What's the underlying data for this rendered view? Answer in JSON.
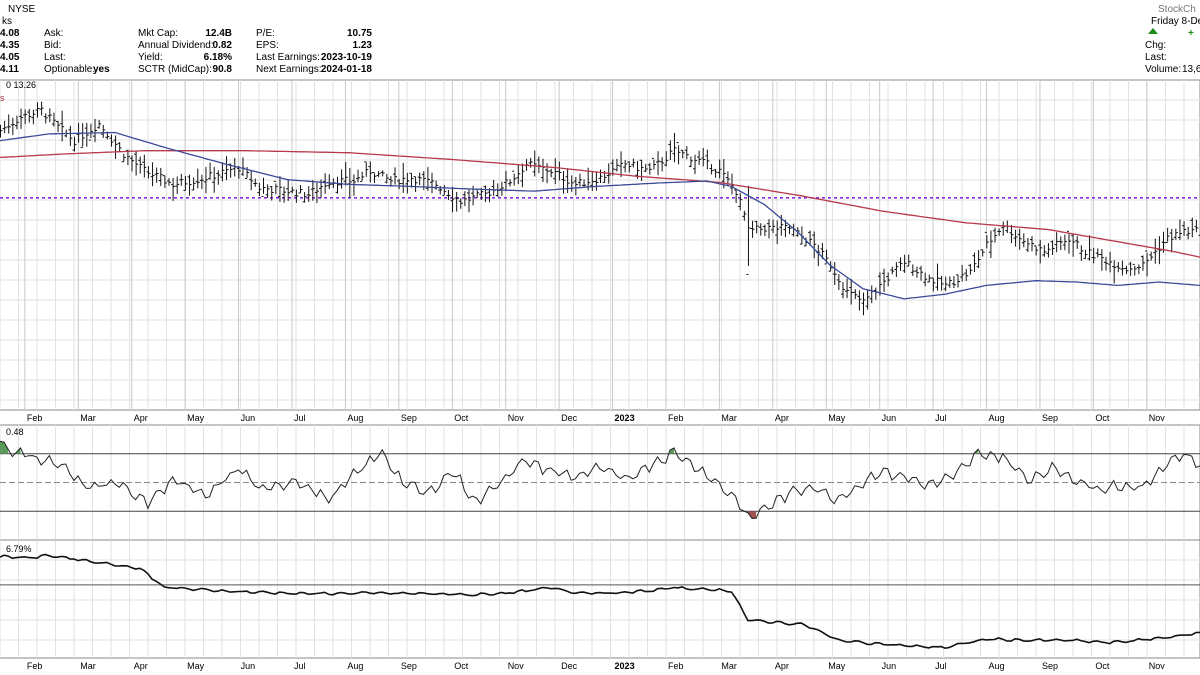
{
  "header": {
    "symbol_exchange": "NYSE",
    "watermark": "StockCh",
    "tick_prefix": "ks",
    "price_cells": [
      "4.08",
      "4.35",
      "4.05",
      "4.11"
    ],
    "col1": [
      {
        "label": "Ask:",
        "value": ""
      },
      {
        "label": "Bid:",
        "value": ""
      },
      {
        "label": "Last:",
        "value": ""
      },
      {
        "label": "Optionable:",
        "value": "yes"
      }
    ],
    "col2": [
      {
        "label": "Mkt Cap:",
        "value": "12.4B"
      },
      {
        "label": "Annual Dividend:",
        "value": "0.82"
      },
      {
        "label": "Yield:",
        "value": "6.18%"
      },
      {
        "label": "SCTR (MidCap):",
        "value": "90.8"
      }
    ],
    "col3": [
      {
        "label": "P/E:",
        "value": "10.75"
      },
      {
        "label": "EPS:",
        "value": "1.23"
      },
      {
        "label": "Last Earnings:",
        "value": "2023-10-19"
      },
      {
        "label": "Next Earnings:",
        "value": "2024-01-18"
      }
    ],
    "right": {
      "date": "Friday 8-De",
      "chg_label": "Chg:",
      "chg_value": "+",
      "last_label": "Last:",
      "volume_label": "Volume:",
      "volume_value": "13,6"
    }
  },
  "chart_data": {
    "type": "line",
    "x_tick_labels": [
      "Feb",
      "Mar",
      "Apr",
      "May",
      "Jun",
      "Jul",
      "Aug",
      "Sep",
      "Oct",
      "Nov",
      "Dec",
      "2023",
      "Feb",
      "Mar",
      "Apr",
      "May",
      "Jun",
      "Jul",
      "Aug",
      "Sep",
      "Oct",
      "Nov"
    ],
    "x_tick_index": [
      8,
      21,
      34,
      47,
      60,
      73,
      86,
      99,
      112,
      125,
      138,
      151,
      164,
      177,
      190,
      203,
      216,
      229,
      242,
      255,
      268,
      281
    ],
    "price_panel": {
      "label_fragment": "0 13.26",
      "ylim": [
        11.2,
        16.1
      ],
      "horizontal_level": 14.35,
      "ma_short_color": "#3a4a9a",
      "ma_long_color": "#b8384c",
      "level_color": "#8a2be2",
      "close_keys": [
        [
          0,
          15.35
        ],
        [
          5,
          15.55
        ],
        [
          10,
          15.65
        ],
        [
          14,
          15.4
        ],
        [
          18,
          15.2
        ],
        [
          24,
          15.45
        ],
        [
          30,
          15.0
        ],
        [
          35,
          14.75
        ],
        [
          42,
          14.55
        ],
        [
          50,
          14.65
        ],
        [
          58,
          14.8
        ],
        [
          63,
          14.5
        ],
        [
          70,
          14.45
        ],
        [
          75,
          14.4
        ],
        [
          80,
          14.6
        ],
        [
          86,
          14.6
        ],
        [
          90,
          14.75
        ],
        [
          95,
          14.6
        ],
        [
          100,
          14.65
        ],
        [
          106,
          14.55
        ],
        [
          112,
          14.3
        ],
        [
          118,
          14.4
        ],
        [
          124,
          14.6
        ],
        [
          128,
          14.85
        ],
        [
          134,
          14.75
        ],
        [
          140,
          14.55
        ],
        [
          146,
          14.65
        ],
        [
          152,
          14.85
        ],
        [
          158,
          14.75
        ],
        [
          164,
          15.05
        ],
        [
          170,
          14.9
        ],
        [
          175,
          14.75
        ],
        [
          179,
          14.45
        ],
        [
          181,
          14.1
        ],
        [
          182,
          13.85
        ],
        [
          186,
          13.9
        ],
        [
          192,
          13.9
        ],
        [
          198,
          13.65
        ],
        [
          202,
          13.35
        ],
        [
          206,
          12.95
        ],
        [
          210,
          12.8
        ],
        [
          214,
          13.05
        ],
        [
          220,
          13.4
        ],
        [
          226,
          13.15
        ],
        [
          230,
          13.05
        ],
        [
          236,
          13.25
        ],
        [
          240,
          13.65
        ],
        [
          244,
          13.95
        ],
        [
          248,
          13.75
        ],
        [
          254,
          13.55
        ],
        [
          260,
          13.75
        ],
        [
          264,
          13.55
        ],
        [
          268,
          13.45
        ],
        [
          274,
          13.3
        ],
        [
          278,
          13.35
        ],
        [
          284,
          13.75
        ],
        [
          288,
          13.85
        ],
        [
          292,
          13.85
        ]
      ],
      "ma_short_keys": [
        [
          0,
          15.2
        ],
        [
          12,
          15.3
        ],
        [
          28,
          15.32
        ],
        [
          40,
          15.1
        ],
        [
          55,
          14.85
        ],
        [
          70,
          14.62
        ],
        [
          85,
          14.55
        ],
        [
          100,
          14.52
        ],
        [
          115,
          14.48
        ],
        [
          130,
          14.45
        ],
        [
          145,
          14.52
        ],
        [
          160,
          14.57
        ],
        [
          172,
          14.6
        ],
        [
          178,
          14.52
        ],
        [
          186,
          14.25
        ],
        [
          194,
          13.85
        ],
        [
          202,
          13.35
        ],
        [
          210,
          13.0
        ],
        [
          220,
          12.85
        ],
        [
          230,
          12.92
        ],
        [
          240,
          13.05
        ],
        [
          252,
          13.12
        ],
        [
          262,
          13.1
        ],
        [
          272,
          13.05
        ],
        [
          282,
          13.1
        ],
        [
          292,
          13.05
        ]
      ],
      "ma_long_keys": [
        [
          0,
          14.95
        ],
        [
          15,
          15.0
        ],
        [
          35,
          15.05
        ],
        [
          60,
          15.05
        ],
        [
          85,
          15.02
        ],
        [
          110,
          14.92
        ],
        [
          135,
          14.8
        ],
        [
          155,
          14.67
        ],
        [
          175,
          14.58
        ],
        [
          195,
          14.38
        ],
        [
          215,
          14.15
        ],
        [
          235,
          13.98
        ],
        [
          255,
          13.88
        ],
        [
          270,
          13.72
        ],
        [
          285,
          13.56
        ],
        [
          292,
          13.47
        ]
      ]
    },
    "rsi_panel": {
      "label_fragment": "0.48",
      "ylim": [
        10,
        90
      ],
      "upper": 70,
      "lower": 30,
      "mid": 50,
      "keys": [
        [
          0,
          78
        ],
        [
          3,
          72
        ],
        [
          8,
          68
        ],
        [
          15,
          62
        ],
        [
          20,
          48
        ],
        [
          28,
          50
        ],
        [
          36,
          36
        ],
        [
          42,
          52
        ],
        [
          50,
          40
        ],
        [
          58,
          60
        ],
        [
          64,
          44
        ],
        [
          72,
          52
        ],
        [
          80,
          38
        ],
        [
          88,
          60
        ],
        [
          93,
          71
        ],
        [
          98,
          50
        ],
        [
          104,
          42
        ],
        [
          110,
          58
        ],
        [
          116,
          36
        ],
        [
          122,
          52
        ],
        [
          128,
          65
        ],
        [
          134,
          58
        ],
        [
          140,
          54
        ],
        [
          146,
          60
        ],
        [
          152,
          52
        ],
        [
          158,
          62
        ],
        [
          164,
          71
        ],
        [
          170,
          60
        ],
        [
          176,
          46
        ],
        [
          180,
          36
        ],
        [
          182,
          24
        ],
        [
          186,
          32
        ],
        [
          192,
          42
        ],
        [
          198,
          48
        ],
        [
          203,
          38
        ],
        [
          208,
          46
        ],
        [
          214,
          58
        ],
        [
          220,
          54
        ],
        [
          226,
          48
        ],
        [
          232,
          54
        ],
        [
          238,
          70
        ],
        [
          244,
          68
        ],
        [
          250,
          52
        ],
        [
          256,
          60
        ],
        [
          262,
          52
        ],
        [
          266,
          46
        ],
        [
          272,
          48
        ],
        [
          278,
          46
        ],
        [
          284,
          64
        ],
        [
          288,
          70
        ],
        [
          292,
          62
        ]
      ]
    },
    "relative_panel": {
      "label_fragment": "6.79%",
      "ylim": [
        0,
        10
      ],
      "reference_level": 6.2,
      "keys": [
        [
          0,
          8.6
        ],
        [
          8,
          8.5
        ],
        [
          12,
          8.7
        ],
        [
          18,
          8.4
        ],
        [
          28,
          7.9
        ],
        [
          34,
          7.6
        ],
        [
          40,
          6.0
        ],
        [
          48,
          5.8
        ],
        [
          60,
          5.6
        ],
        [
          75,
          5.45
        ],
        [
          90,
          5.5
        ],
        [
          105,
          5.45
        ],
        [
          115,
          5.35
        ],
        [
          125,
          5.55
        ],
        [
          134,
          5.95
        ],
        [
          140,
          5.55
        ],
        [
          150,
          5.5
        ],
        [
          158,
          5.7
        ],
        [
          164,
          5.95
        ],
        [
          170,
          5.85
        ],
        [
          178,
          5.7
        ],
        [
          182,
          3.2
        ],
        [
          190,
          3.0
        ],
        [
          196,
          2.8
        ],
        [
          204,
          1.5
        ],
        [
          214,
          1.2
        ],
        [
          222,
          1.0
        ],
        [
          230,
          0.9
        ],
        [
          240,
          1.6
        ],
        [
          250,
          1.5
        ],
        [
          260,
          1.5
        ],
        [
          270,
          1.3
        ],
        [
          280,
          1.6
        ],
        [
          292,
          2.1
        ]
      ]
    }
  }
}
